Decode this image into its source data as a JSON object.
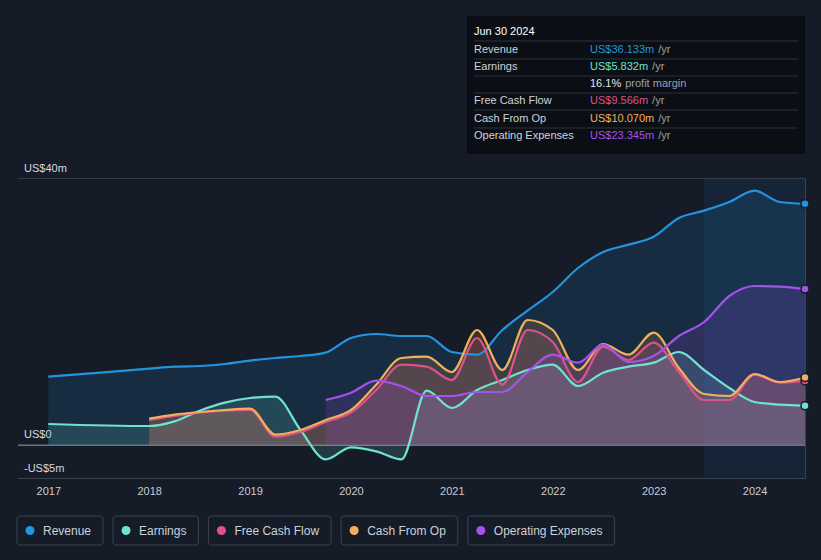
{
  "chart_data": {
    "type": "line",
    "x": [
      2017,
      2018,
      2018.25,
      2018.5,
      2018.75,
      2019,
      2019.25,
      2019.5,
      2019.75,
      2020,
      2020.25,
      2020.5,
      2020.75,
      2021,
      2021.25,
      2021.5,
      2021.75,
      2022,
      2022.25,
      2022.5,
      2022.75,
      2023,
      2023.25,
      2023.5,
      2023.75,
      2024,
      2024.25,
      2024.5
    ],
    "xlim": [
      2016.7,
      2024.5
    ],
    "xticks": [
      2017,
      2018,
      2019,
      2020,
      2021,
      2022,
      2023,
      2024
    ],
    "ylim": [
      -5,
      40
    ],
    "yticks": [
      {
        "value": -5,
        "label": "-US$5m"
      },
      {
        "value": 0,
        "label": "US$0"
      },
      {
        "value": 40,
        "label": "US$40m"
      }
    ],
    "grid": true,
    "legend": "bottom",
    "series": [
      {
        "name": "Revenue",
        "color": "#2394df",
        "values": [
          10.2,
          11.4,
          11.7,
          11.8,
          12.1,
          12.6,
          13.0,
          13.3,
          13.8,
          16.0,
          16.6,
          16.3,
          16.3,
          13.9,
          13.5,
          17.2,
          20.1,
          22.9,
          26.5,
          28.9,
          30.0,
          31.2,
          34.0,
          35.1,
          36.4,
          38.1,
          36.4,
          36.133
        ]
      },
      {
        "name": "Earnings",
        "color": "#6fe3cf",
        "values": [
          3.1,
          2.8,
          3.5,
          5.1,
          6.3,
          7.0,
          7.2,
          2.2,
          -2.2,
          -0.4,
          -1.0,
          -2.2,
          8.1,
          5.5,
          8.2,
          9.7,
          11.2,
          12.0,
          8.8,
          10.8,
          11.7,
          12.3,
          13.9,
          11.2,
          8.5,
          6.4,
          6.0,
          5.832
        ]
      },
      {
        "name": "Free Cash Flow",
        "color": "#de5289",
        "values": [
          null,
          3.7,
          4.3,
          4.8,
          5.1,
          5.2,
          1.2,
          1.9,
          3.4,
          4.8,
          8.2,
          12.0,
          11.7,
          9.7,
          16.0,
          9.0,
          17.2,
          15.4,
          9.4,
          14.7,
          12.7,
          15.3,
          10.9,
          6.7,
          6.7,
          10.5,
          9.3,
          9.566
        ]
      },
      {
        "name": "Cash From Op",
        "color": "#f2b05e",
        "values": [
          null,
          3.9,
          4.5,
          4.9,
          5.2,
          5.4,
          1.5,
          2.2,
          3.7,
          5.2,
          9.0,
          13.0,
          13.2,
          10.9,
          17.2,
          11.2,
          18.7,
          17.2,
          11.2,
          15.1,
          13.5,
          16.8,
          11.5,
          7.6,
          7.3,
          10.6,
          9.4,
          10.07
        ]
      },
      {
        "name": "Operating Expenses",
        "color": "#a552ec",
        "values": [
          null,
          null,
          null,
          null,
          null,
          null,
          null,
          null,
          6.7,
          7.8,
          9.6,
          8.8,
          7.3,
          7.3,
          7.9,
          7.9,
          10.9,
          13.5,
          12.3,
          15.0,
          12.4,
          13.3,
          16.3,
          18.4,
          22.3,
          23.8,
          23.7,
          23.345
        ]
      }
    ],
    "annotation": {
      "date": "Jun 30 2024",
      "rows": [
        {
          "label": "Revenue",
          "value": "US$36.133m",
          "unit": "/yr"
        },
        {
          "label": "Earnings",
          "value": "US$5.832m",
          "unit": "/yr"
        },
        {
          "label": "Free Cash Flow",
          "value": "US$9.566m",
          "unit": "/yr"
        },
        {
          "label": "Cash From Op",
          "value": "US$10.070m",
          "unit": "/yr"
        },
        {
          "label": "Operating Expenses",
          "value": "US$23.345m",
          "unit": "/yr"
        }
      ],
      "margin": {
        "value": "16.1%",
        "label": "profit margin"
      }
    }
  }
}
